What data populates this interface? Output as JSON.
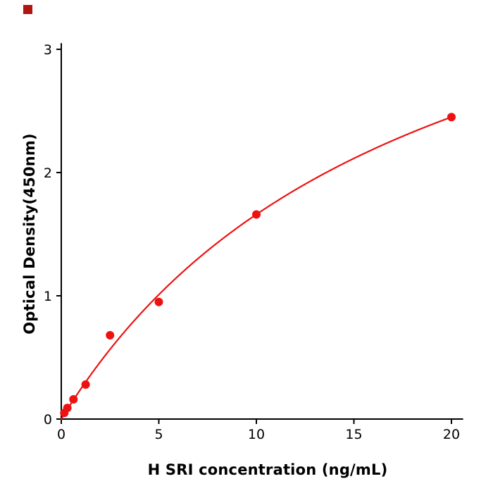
{
  "page": {
    "background": "#ffffff"
  },
  "decor": {
    "corner_mark_color": "#b01512"
  },
  "chart_data": {
    "type": "scatter",
    "title": "",
    "xlabel": "H  SRI concentration (ng/mL)",
    "ylabel": "Optical Density(450nm)",
    "x": [
      0.156,
      0.3125,
      0.625,
      1.25,
      2.5,
      5,
      10,
      20
    ],
    "y": [
      0.05,
      0.09,
      0.16,
      0.28,
      0.68,
      0.95,
      1.66,
      2.45
    ],
    "xticks": [
      0,
      5,
      10,
      15,
      20
    ],
    "yticks": [
      0,
      1,
      2,
      3
    ],
    "xlim": [
      0,
      20.6
    ],
    "ylim": [
      0,
      3.05
    ],
    "grid": false,
    "legend": "none",
    "point_color": "#ee1111",
    "line_color": "#ee1111",
    "axis_color": "#000000",
    "marker_radius": 6,
    "fit": {
      "model": "michaelis-menten",
      "vmax": 4.675,
      "k": 18.16,
      "x_start": 0,
      "x_end": 20
    }
  }
}
